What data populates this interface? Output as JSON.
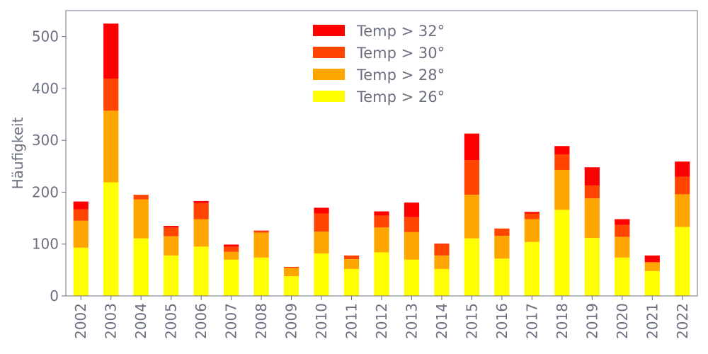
{
  "chart_data": {
    "type": "bar",
    "stacked": true,
    "ylabel": "Häufigkeit",
    "xlabel": "",
    "ylim": [
      0,
      550
    ],
    "yticks": [
      0,
      100,
      200,
      300,
      400,
      500
    ],
    "grid": false,
    "legend_placement": "top-center",
    "categories": [
      "2002",
      "2003",
      "2004",
      "2005",
      "2006",
      "2007",
      "2008",
      "2009",
      "2010",
      "2011",
      "2012",
      "2013",
      "2014",
      "2015",
      "2016",
      "2017",
      "2018",
      "2019",
      "2020",
      "2021",
      "2022"
    ],
    "series": [
      {
        "name": "Temp > 26°",
        "color": "#ffff00",
        "values": [
          93,
          219,
          111,
          78,
          95,
          70,
          74,
          38,
          82,
          52,
          84,
          70,
          52,
          111,
          72,
          104,
          166,
          112,
          74,
          48,
          133
        ]
      },
      {
        "name": "Temp > 28°",
        "color": "#ffa500",
        "values": [
          52,
          138,
          75,
          37,
          53,
          15,
          48,
          16,
          42,
          19,
          48,
          53,
          26,
          84,
          44,
          44,
          77,
          76,
          40,
          17,
          63
        ]
      },
      {
        "name": "Temp > 30°",
        "color": "#ff4500",
        "values": [
          22,
          62,
          9,
          17,
          31,
          10,
          3,
          2,
          35,
          7,
          23,
          29,
          22,
          67,
          14,
          11,
          30,
          25,
          23,
          0,
          34
        ]
      },
      {
        "name": "Temp > 32°",
        "color": "#ff0000",
        "values": [
          15,
          106,
          0,
          3,
          4,
          4,
          1,
          0,
          11,
          0,
          8,
          28,
          1,
          51,
          0,
          3,
          16,
          35,
          11,
          13,
          29
        ]
      }
    ]
  }
}
